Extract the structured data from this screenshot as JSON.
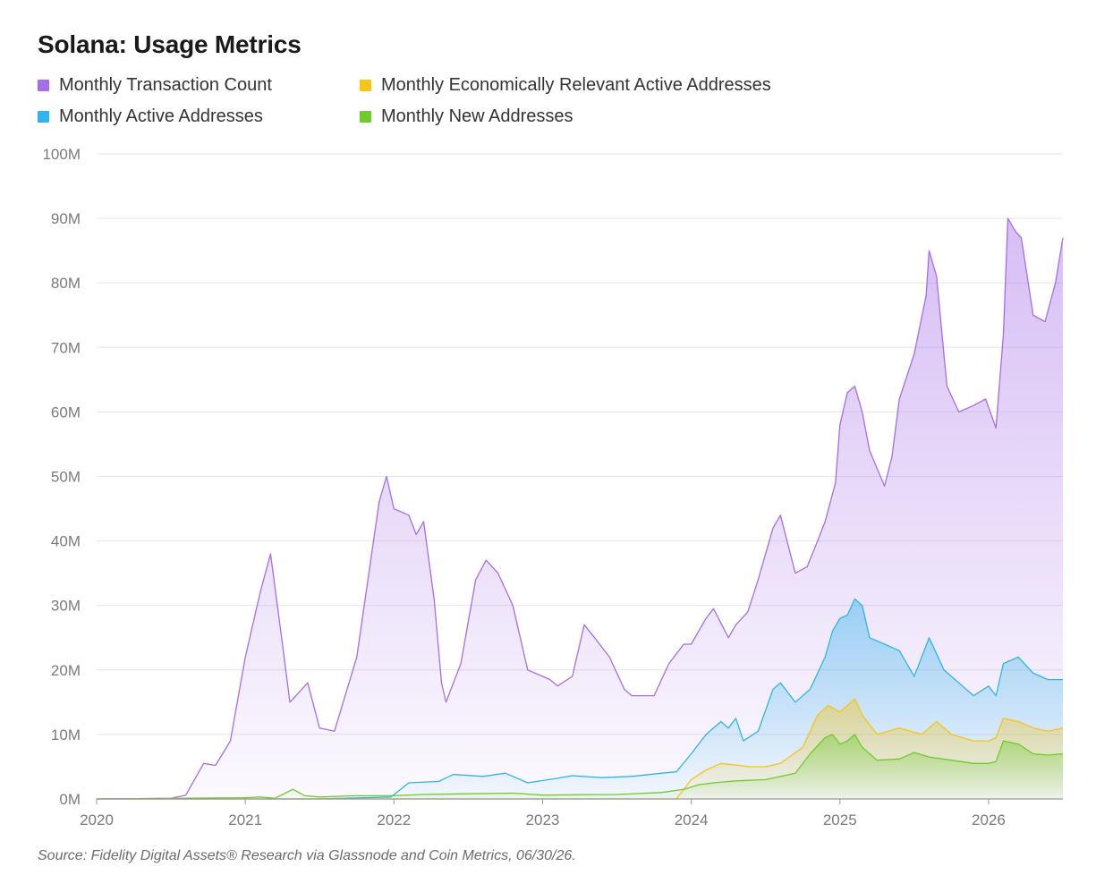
{
  "title": "Solana: Usage Metrics",
  "source": "Source: Fidelity Digital Assets® Research via Glassnode and Coin Metrics, 06/30/26.",
  "legend": [
    {
      "label": "Monthly Transaction Count",
      "color": "#a56ee8"
    },
    {
      "label": "Monthly Economically Relevant Active Addresses",
      "color": "#f5c518"
    },
    {
      "label": "Monthly Active Addresses",
      "color": "#30b4ea"
    },
    {
      "label": "Monthly New Addresses",
      "color": "#6fcb2a"
    }
  ],
  "chart_data": {
    "type": "area",
    "title": "Solana: Usage Metrics",
    "xlabel": "",
    "ylabel": "",
    "x_range": [
      2020.0,
      2026.5
    ],
    "ylim": [
      0,
      100
    ],
    "y_unit": "M",
    "x_ticks": [
      "2020",
      "2021",
      "2022",
      "2023",
      "2024",
      "2025",
      "2026"
    ],
    "y_ticks": [
      "0M",
      "10M",
      "20M",
      "30M",
      "40M",
      "50M",
      "60M",
      "70M",
      "80M",
      "90M",
      "100M"
    ],
    "grid": true,
    "legend_position": "top-left",
    "series": [
      {
        "name": "Monthly Transaction Count",
        "color": "#a56ee8",
        "points": [
          [
            2020.0,
            0
          ],
          [
            2020.5,
            0.1
          ],
          [
            2020.6,
            0.6
          ],
          [
            2020.72,
            5.5
          ],
          [
            2020.8,
            5.2
          ],
          [
            2020.9,
            9
          ],
          [
            2021.0,
            22
          ],
          [
            2021.1,
            32
          ],
          [
            2021.17,
            38
          ],
          [
            2021.25,
            24
          ],
          [
            2021.3,
            15
          ],
          [
            2021.42,
            18
          ],
          [
            2021.5,
            11
          ],
          [
            2021.6,
            10.5
          ],
          [
            2021.75,
            22
          ],
          [
            2021.9,
            46
          ],
          [
            2021.95,
            50
          ],
          [
            2022.0,
            45
          ],
          [
            2022.1,
            44
          ],
          [
            2022.15,
            41
          ],
          [
            2022.2,
            43
          ],
          [
            2022.27,
            31
          ],
          [
            2022.32,
            18
          ],
          [
            2022.35,
            15
          ],
          [
            2022.45,
            21
          ],
          [
            2022.55,
            34
          ],
          [
            2022.62,
            37
          ],
          [
            2022.7,
            35
          ],
          [
            2022.8,
            30
          ],
          [
            2022.9,
            20
          ],
          [
            2023.0,
            19
          ],
          [
            2023.05,
            18.5
          ],
          [
            2023.1,
            17.5
          ],
          [
            2023.2,
            19
          ],
          [
            2023.28,
            27
          ],
          [
            2023.35,
            25
          ],
          [
            2023.45,
            22
          ],
          [
            2023.55,
            17
          ],
          [
            2023.6,
            16
          ],
          [
            2023.75,
            16
          ],
          [
            2023.85,
            21
          ],
          [
            2023.95,
            24
          ],
          [
            2024.0,
            24
          ],
          [
            2024.1,
            28
          ],
          [
            2024.15,
            29.5
          ],
          [
            2024.25,
            25
          ],
          [
            2024.3,
            27
          ],
          [
            2024.38,
            29
          ],
          [
            2024.45,
            34
          ],
          [
            2024.55,
            42
          ],
          [
            2024.6,
            44
          ],
          [
            2024.7,
            35
          ],
          [
            2024.78,
            36
          ],
          [
            2024.85,
            40
          ],
          [
            2024.9,
            43
          ],
          [
            2024.97,
            49
          ],
          [
            2025.0,
            58
          ],
          [
            2025.05,
            63
          ],
          [
            2025.1,
            64
          ],
          [
            2025.15,
            60
          ],
          [
            2025.2,
            54
          ],
          [
            2025.3,
            48.5
          ],
          [
            2025.35,
            53
          ],
          [
            2025.4,
            62
          ],
          [
            2025.5,
            69
          ],
          [
            2025.58,
            78
          ],
          [
            2025.6,
            85
          ],
          [
            2025.65,
            81
          ],
          [
            2025.72,
            64
          ],
          [
            2025.8,
            60
          ],
          [
            2025.9,
            61
          ],
          [
            2025.98,
            62
          ],
          [
            2026.05,
            57.5
          ],
          [
            2026.1,
            72
          ],
          [
            2026.13,
            90
          ],
          [
            2026.18,
            88
          ],
          [
            2026.22,
            87
          ],
          [
            2026.3,
            75
          ],
          [
            2026.38,
            74
          ],
          [
            2026.45,
            80
          ],
          [
            2026.5,
            87
          ]
        ]
      },
      {
        "name": "Monthly Active Addresses",
        "color": "#30b4ea",
        "points": [
          [
            2020.0,
            0
          ],
          [
            2021.0,
            0
          ],
          [
            2021.5,
            0
          ],
          [
            2021.98,
            0.3
          ],
          [
            2022.1,
            2.5
          ],
          [
            2022.3,
            2.7
          ],
          [
            2022.4,
            3.8
          ],
          [
            2022.6,
            3.5
          ],
          [
            2022.75,
            4
          ],
          [
            2022.9,
            2.5
          ],
          [
            2023.1,
            3.2
          ],
          [
            2023.2,
            3.6
          ],
          [
            2023.4,
            3.3
          ],
          [
            2023.6,
            3.5
          ],
          [
            2023.8,
            4
          ],
          [
            2023.9,
            4.2
          ],
          [
            2024.0,
            7
          ],
          [
            2024.1,
            10
          ],
          [
            2024.2,
            12
          ],
          [
            2024.25,
            11
          ],
          [
            2024.3,
            12.5
          ],
          [
            2024.35,
            9
          ],
          [
            2024.45,
            10.5
          ],
          [
            2024.55,
            17
          ],
          [
            2024.6,
            18
          ],
          [
            2024.7,
            15
          ],
          [
            2024.8,
            17
          ],
          [
            2024.9,
            22
          ],
          [
            2024.95,
            26
          ],
          [
            2025.0,
            28
          ],
          [
            2025.05,
            28.5
          ],
          [
            2025.1,
            31
          ],
          [
            2025.15,
            30
          ],
          [
            2025.2,
            25
          ],
          [
            2025.3,
            24
          ],
          [
            2025.4,
            23
          ],
          [
            2025.5,
            19
          ],
          [
            2025.6,
            25
          ],
          [
            2025.7,
            20
          ],
          [
            2025.8,
            18
          ],
          [
            2025.9,
            16
          ],
          [
            2026.0,
            17.5
          ],
          [
            2026.05,
            16
          ],
          [
            2026.1,
            21
          ],
          [
            2026.2,
            22
          ],
          [
            2026.3,
            19.5
          ],
          [
            2026.4,
            18.5
          ],
          [
            2026.5,
            18.5
          ]
        ]
      },
      {
        "name": "Monthly Economically Relevant Active Addresses",
        "color": "#f5c518",
        "points": [
          [
            2020.0,
            0
          ],
          [
            2023.9,
            0
          ],
          [
            2024.0,
            3
          ],
          [
            2024.1,
            4.5
          ],
          [
            2024.2,
            5.5
          ],
          [
            2024.4,
            5
          ],
          [
            2024.5,
            5
          ],
          [
            2024.6,
            5.5
          ],
          [
            2024.75,
            8
          ],
          [
            2024.85,
            13
          ],
          [
            2024.92,
            14.5
          ],
          [
            2025.0,
            13.5
          ],
          [
            2025.05,
            14.5
          ],
          [
            2025.1,
            15.5
          ],
          [
            2025.15,
            13
          ],
          [
            2025.25,
            10
          ],
          [
            2025.4,
            11
          ],
          [
            2025.55,
            10
          ],
          [
            2025.65,
            12
          ],
          [
            2025.75,
            10
          ],
          [
            2025.9,
            9
          ],
          [
            2026.0,
            9
          ],
          [
            2026.05,
            9.5
          ],
          [
            2026.1,
            12.5
          ],
          [
            2026.2,
            12
          ],
          [
            2026.3,
            11
          ],
          [
            2026.4,
            10.5
          ],
          [
            2026.5,
            11
          ]
        ]
      },
      {
        "name": "Monthly New Addresses",
        "color": "#6fcb2a",
        "points": [
          [
            2020.0,
            0
          ],
          [
            2021.0,
            0.2
          ],
          [
            2021.1,
            0.3
          ],
          [
            2021.2,
            0.1
          ],
          [
            2021.32,
            1.5
          ],
          [
            2021.4,
            0.5
          ],
          [
            2021.5,
            0.3
          ],
          [
            2021.75,
            0.5
          ],
          [
            2022.0,
            0.5
          ],
          [
            2022.2,
            0.7
          ],
          [
            2022.5,
            0.8
          ],
          [
            2022.8,
            0.9
          ],
          [
            2023.0,
            0.6
          ],
          [
            2023.5,
            0.7
          ],
          [
            2023.8,
            1
          ],
          [
            2023.95,
            1.5
          ],
          [
            2024.05,
            2.2
          ],
          [
            2024.15,
            2.5
          ],
          [
            2024.3,
            2.8
          ],
          [
            2024.5,
            3
          ],
          [
            2024.7,
            4
          ],
          [
            2024.8,
            7
          ],
          [
            2024.9,
            9.5
          ],
          [
            2024.95,
            10
          ],
          [
            2025.0,
            8.5
          ],
          [
            2025.05,
            9
          ],
          [
            2025.1,
            10
          ],
          [
            2025.15,
            8
          ],
          [
            2025.25,
            6
          ],
          [
            2025.4,
            6.2
          ],
          [
            2025.5,
            7.2
          ],
          [
            2025.6,
            6.5
          ],
          [
            2025.75,
            6
          ],
          [
            2025.9,
            5.5
          ],
          [
            2026.0,
            5.5
          ],
          [
            2026.05,
            5.8
          ],
          [
            2026.1,
            9
          ],
          [
            2026.2,
            8.5
          ],
          [
            2026.3,
            7
          ],
          [
            2026.4,
            6.8
          ],
          [
            2026.5,
            7
          ]
        ]
      }
    ]
  }
}
